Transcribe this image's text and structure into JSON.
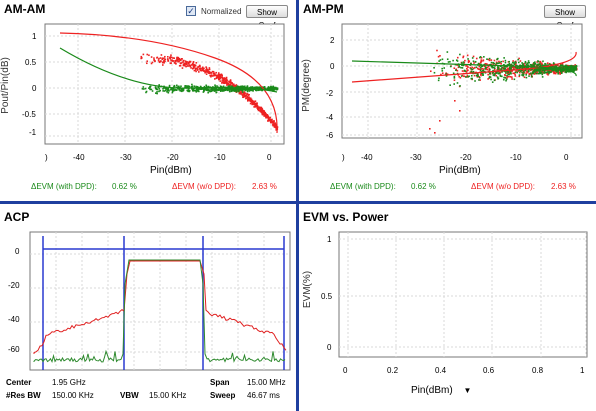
{
  "colors": {
    "with_dpd": "#1a8a1a",
    "without_dpd": "#ee2222",
    "acp_blue": "#2a3ad0",
    "acp_green": "#2e8a2e",
    "acp_red": "#e02020",
    "divider": "#1f3f9f"
  },
  "am_am": {
    "title": "AM-AM",
    "normalized_label": "Normalized",
    "normalized_checked": true,
    "show_coef_label": "Show Coef",
    "ylabel": "Pout/Pin(dB)",
    "xlabel": "Pin(dBm)",
    "yticks": [
      "1",
      "0.5",
      "0",
      "-0.5",
      "-1"
    ],
    "xticks": [
      "-40",
      "-30",
      "-20",
      "-10",
      "0"
    ],
    "xtick_first": ")",
    "evm_with_label": "ΔEVM (with DPD):",
    "evm_with_value": "0.62 %",
    "evm_wo_label": "ΔEVM (w/o DPD):",
    "evm_wo_value": "2.63 %"
  },
  "am_pm": {
    "title": "AM-PM",
    "show_coef_label": "Show Coef",
    "ylabel": "PM(degree)",
    "xlabel": "Pin(dBm)",
    "yticks": [
      "2",
      "0",
      "-2",
      "-4",
      "-6"
    ],
    "xticks": [
      "-40",
      "-30",
      "-20",
      "-10",
      "0"
    ],
    "xtick_first": ")",
    "evm_with_label": "ΔEVM (with DPD):",
    "evm_with_value": "0.62 %",
    "evm_wo_label": "ΔEVM (w/o DPD):",
    "evm_wo_value": "2.63 %"
  },
  "acp": {
    "title": "ACP",
    "yticks": [
      "0",
      "-20",
      "-40",
      "-60"
    ],
    "center_label": "Center",
    "center_value": "1.95 GHz",
    "span_label": "Span",
    "span_value": "15.00 MHz",
    "resbw_label": "#Res BW",
    "resbw_value": "150.00 KHz",
    "vbw_label": "VBW",
    "vbw_value": "15.00 KHz",
    "sweep_label": "Sweep",
    "sweep_value": "46.67 ms"
  },
  "evm_power": {
    "title": "EVM vs. Power",
    "ylabel": "EVM(%)",
    "xlabel": "Pin(dBm)",
    "yticks": [
      "1",
      "0.5",
      "0"
    ],
    "xticks": [
      "0",
      "0.2",
      "0.4",
      "0.6",
      "0.8",
      "1"
    ]
  }
}
